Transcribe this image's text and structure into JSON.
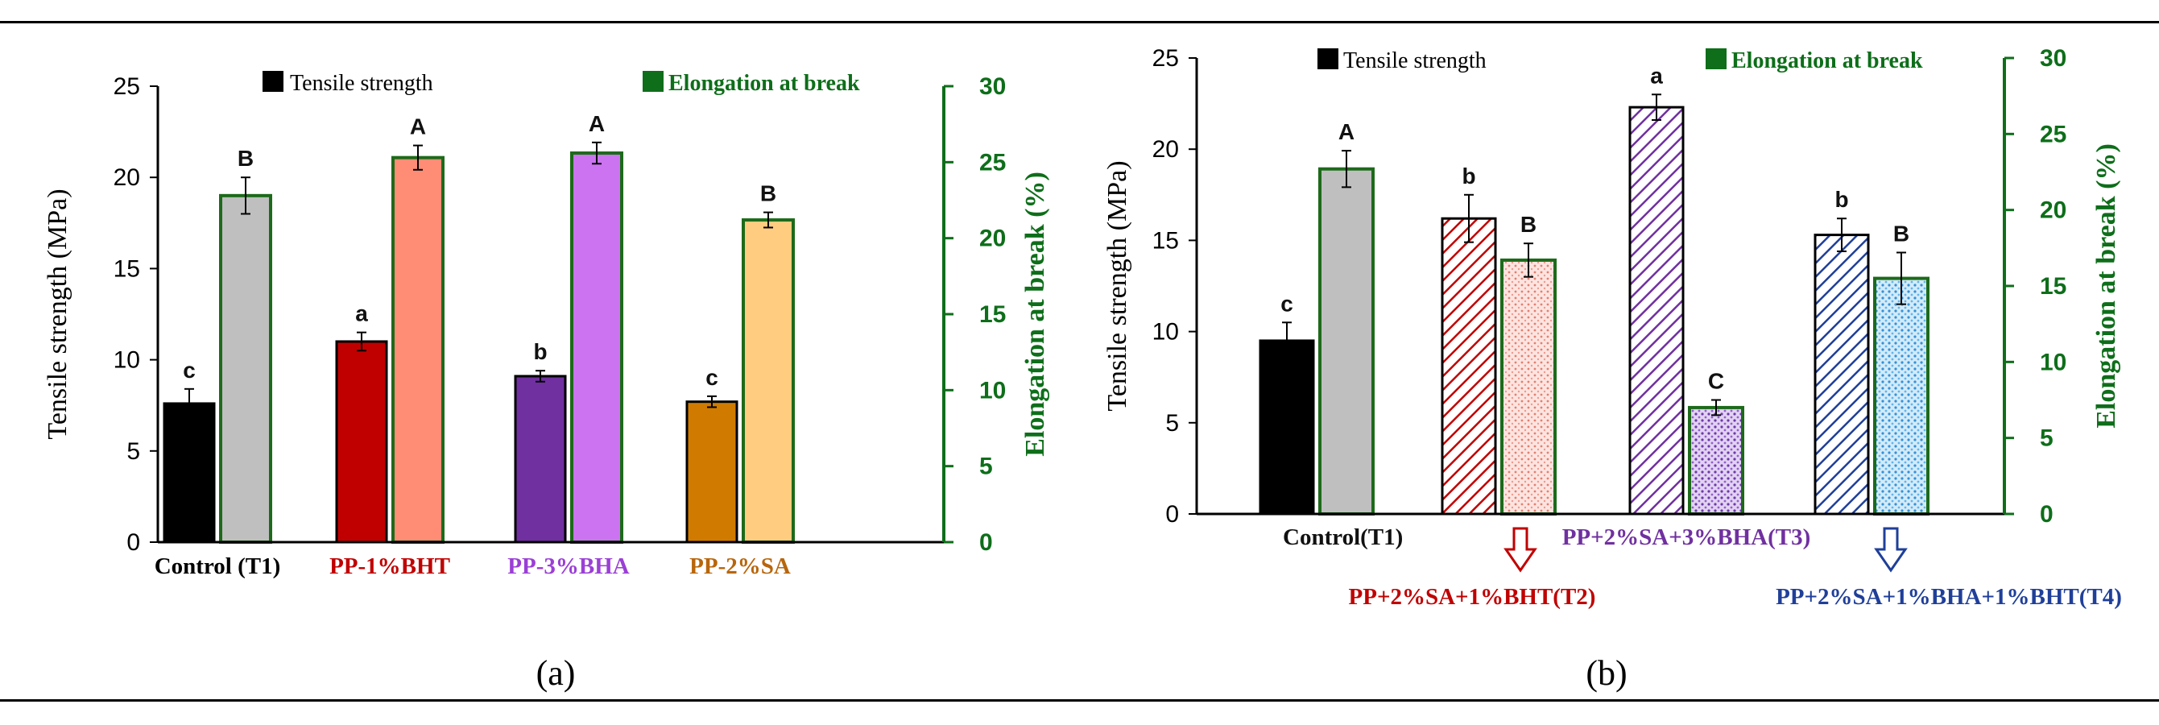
{
  "colors": {
    "green_axis": "#0e6e1a",
    "bar_border_green": "#1d6a1a"
  },
  "chart_data": [
    {
      "panel": "a",
      "type": "bar",
      "caption": "(a)",
      "ylabel_left": "Tensile strength (MPa)",
      "ylabel_right": "Elongation at break (%)",
      "ylim_left": [
        0,
        25
      ],
      "ylim_right": [
        0,
        30
      ],
      "yticks_left": [
        0,
        5,
        10,
        15,
        20,
        25
      ],
      "yticks_right": [
        0,
        5,
        10,
        15,
        20,
        25,
        30
      ],
      "legend": [
        "Tensile strength",
        "Elongation at break"
      ],
      "categories": [
        "Control (T1)",
        "PP-1%BHT",
        "PP-3%BHA",
        "PP-2%SA"
      ],
      "category_colors": [
        "#000000",
        "#c00000",
        "#9b3fd6",
        "#b8660c"
      ],
      "series": [
        {
          "name": "Tensile strength",
          "values": [
            7.6,
            11.0,
            9.1,
            7.7
          ],
          "errors": [
            0.8,
            0.5,
            0.3,
            0.3
          ],
          "letters": [
            "c",
            "a",
            "b",
            "c"
          ],
          "colors": [
            "#000000",
            "#c00000",
            "#7030a0",
            "#d07b00"
          ]
        },
        {
          "name": "Elongation at break",
          "values": [
            22.8,
            25.3,
            25.6,
            21.2
          ],
          "errors": [
            1.2,
            0.8,
            0.7,
            0.5
          ],
          "letters": [
            "B",
            "A",
            "A",
            "B"
          ],
          "colors": [
            "#bfbfbf",
            "#ff8c75",
            "#cc73f2",
            "#ffcc80"
          ]
        }
      ]
    },
    {
      "panel": "b",
      "type": "bar",
      "caption": "(b)",
      "ylabel_left": "Tensile strength (MPa)",
      "ylabel_right": "Elongation at break (%)",
      "ylim_left": [
        0,
        25
      ],
      "ylim_right": [
        0,
        30
      ],
      "yticks_left": [
        0,
        5,
        10,
        15,
        20,
        25
      ],
      "yticks_right": [
        0,
        5,
        10,
        15,
        20,
        25,
        30
      ],
      "legend": [
        "Tensile strength",
        "Elongation at break"
      ],
      "categories": [
        "Control(T1)",
        "PP+2%SA+1%BHT(T2)",
        "PP+2%SA+3%BHA(T3)",
        "PP+2%SA+1%BHA+1%BHT(T4)"
      ],
      "category_colors": [
        "#111111",
        "#c00000",
        "#7030a0",
        "#1f3f99"
      ],
      "series": [
        {
          "name": "Tensile strength",
          "values": [
            9.5,
            16.2,
            22.3,
            15.3
          ],
          "errors": [
            1.0,
            1.3,
            0.7,
            0.9
          ],
          "letters": [
            "c",
            "b",
            "a",
            "b"
          ],
          "colors": [
            "#000000",
            "#c00000",
            "#7030a0",
            "#1f3f99"
          ]
        },
        {
          "name": "Elongation at break",
          "values": [
            22.7,
            16.7,
            7.0,
            15.5
          ],
          "errors": [
            1.2,
            1.1,
            0.5,
            1.7
          ],
          "letters": [
            "A",
            "B",
            "C",
            "B"
          ],
          "colors": [
            "#bfbfbf",
            "#f4b8b0",
            "#9d6fd0",
            "#58a6df"
          ]
        }
      ]
    }
  ]
}
